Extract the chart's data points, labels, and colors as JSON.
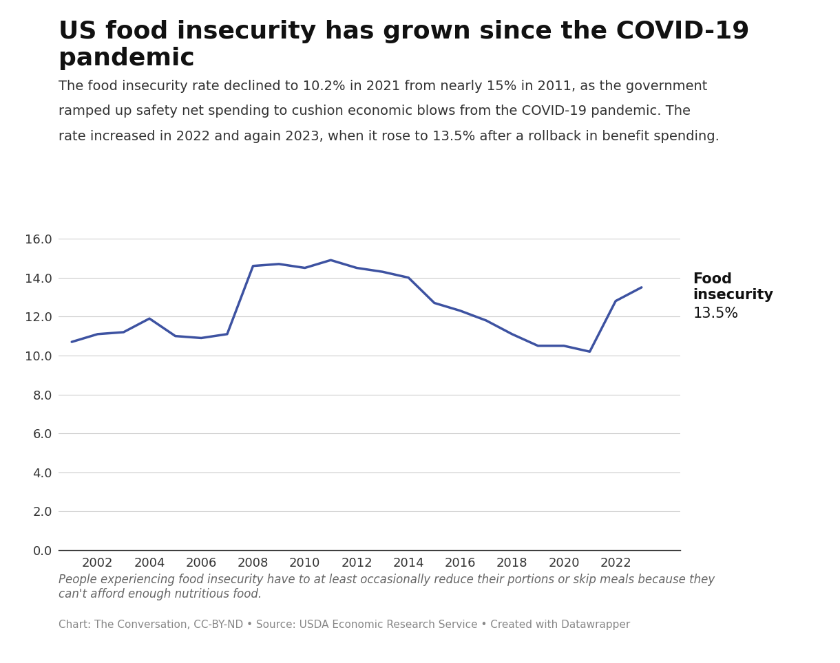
{
  "title": "US food insecurity has grown since the COVID-19 pandemic",
  "subtitle_lines": [
    "The food insecurity rate declined to 10.2% in 2021 from nearly 15% in 2011, as the government",
    "ramped up safety net spending to cushion economic blows from the COVID-19 pandemic. The",
    "rate increased in 2022 and again 2023, when it rose to 13.5% after a rollback in benefit spending."
  ],
  "footnote_italic": "People experiencing food insecurity have to at least occasionally reduce their portions or skip meals because they\ncan't afford enough nutritious food.",
  "footnote_source": "Chart: The Conversation, CC-BY-ND • Source: USDA Economic Research Service • Created with Datawrapper",
  "years": [
    2001,
    2002,
    2003,
    2004,
    2005,
    2006,
    2007,
    2008,
    2009,
    2010,
    2011,
    2012,
    2013,
    2014,
    2015,
    2016,
    2017,
    2018,
    2019,
    2020,
    2021,
    2022,
    2023
  ],
  "values": [
    10.7,
    11.1,
    11.2,
    11.9,
    11.0,
    10.9,
    11.1,
    14.6,
    14.7,
    14.5,
    14.9,
    14.5,
    14.3,
    14.0,
    12.7,
    12.3,
    11.8,
    11.1,
    10.5,
    10.5,
    10.2,
    12.8,
    13.5
  ],
  "line_color": "#3d52a1",
  "line_width": 2.5,
  "label_title": "Food\ninsecurity",
  "label_value": "13.5%",
  "ylim": [
    0,
    16.0
  ],
  "yticks": [
    0.0,
    2.0,
    4.0,
    6.0,
    8.0,
    10.0,
    12.0,
    14.0,
    16.0
  ],
  "xtick_years": [
    2002,
    2004,
    2006,
    2008,
    2010,
    2012,
    2014,
    2016,
    2018,
    2020,
    2022
  ],
  "background_color": "#ffffff",
  "title_fontsize": 26,
  "subtitle_fontsize": 14,
  "axis_label_fontsize": 13,
  "footnote_fontsize": 12,
  "source_fontsize": 11
}
